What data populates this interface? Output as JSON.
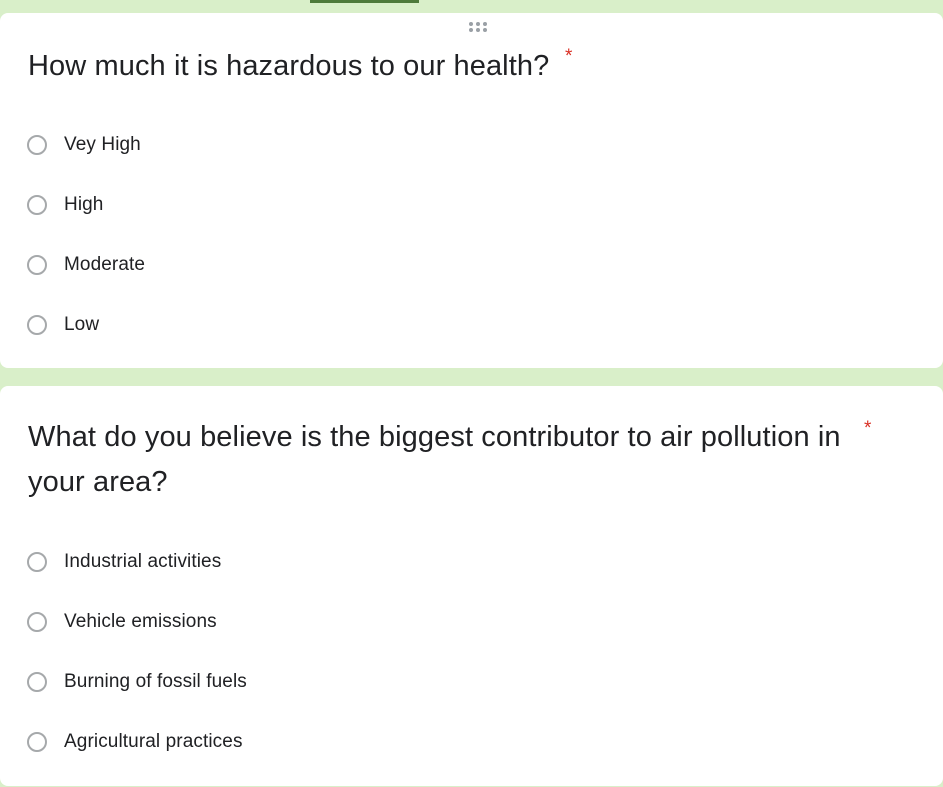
{
  "colors": {
    "background": "#d9efc9",
    "card": "#ffffff",
    "text": "#202124",
    "required": "#d93025",
    "accent": "#4e7a3b"
  },
  "questions": [
    {
      "title": "How much it is hazardous to our health?",
      "required_mark": "*",
      "options": [
        "Vey High",
        "High",
        "Moderate",
        "Low"
      ]
    },
    {
      "title": "What do you believe is the biggest contributor to air pollution in your area?",
      "required_mark": "*",
      "options": [
        "Industrial activities",
        "Vehicle emissions",
        "Burning of fossil fuels",
        "Agricultural practices"
      ]
    }
  ],
  "icons": {
    "drag_handle": "drag-handle-icon",
    "radio": "radio-unchecked-icon"
  }
}
